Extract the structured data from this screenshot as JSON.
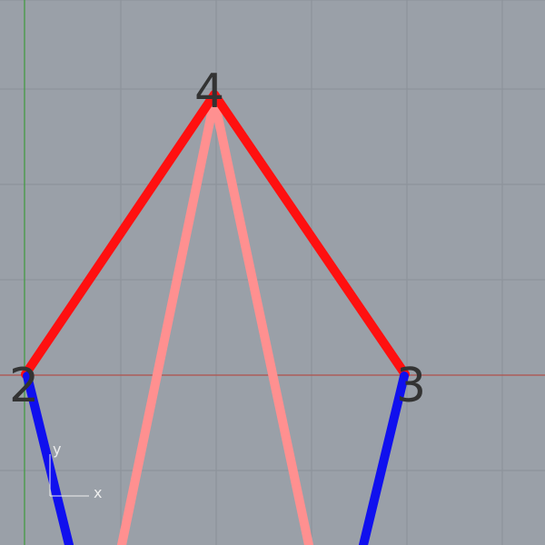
{
  "viewport": {
    "background": "#9aa0a8",
    "grid_color": "#8b9199",
    "x_axis_color": "#b0504a",
    "y_axis_color": "#3c9a3c"
  },
  "vertices": [
    {
      "id": "2",
      "label": "2"
    },
    {
      "id": "3",
      "label": "3"
    },
    {
      "id": "4",
      "label": "4"
    }
  ],
  "edges": {
    "upper_red": {
      "color": "#ff1010",
      "from": "2",
      "via": "4",
      "to": "3"
    },
    "inner_pink": {
      "color": "#ff9090"
    },
    "outer_blue": {
      "color": "#1010ee"
    }
  },
  "axis_indicator": {
    "x_label": "x",
    "y_label": "y"
  }
}
